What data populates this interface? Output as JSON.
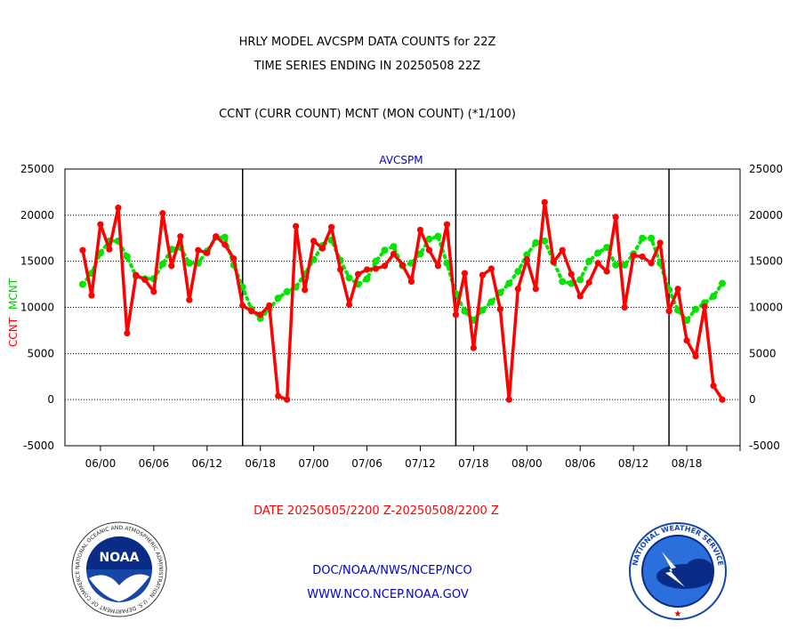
{
  "header": {
    "title_line1": "HRLY MODEL AVCSPM DATA COUNTS for 22Z",
    "title_line2": "TIME SERIES ENDING IN 20250508 22Z",
    "subtitle": "CCNT (CURR COUNT) MCNT (MON COUNT) (*1/100)"
  },
  "chart_data": {
    "type": "line",
    "title": "AVCSPM",
    "ylabel_left": [
      "CCNT",
      "MCNT"
    ],
    "ylim": [
      -5000,
      25000
    ],
    "yticks": [
      25000,
      20000,
      15000,
      10000,
      5000,
      0,
      -5000
    ],
    "x_range": [
      -2,
      74
    ],
    "x_tick_positions": [
      2,
      8,
      14,
      20,
      26,
      32,
      38,
      44,
      50,
      56,
      62,
      68,
      74
    ],
    "x_tick_labels": [
      "06/00",
      "06/06",
      "06/12",
      "06/18",
      "07/00",
      "07/06",
      "07/12",
      "07/18",
      "08/00",
      "08/06",
      "08/12",
      "08/18",
      ""
    ],
    "day_boundaries": [
      18,
      42,
      66
    ],
    "grid": true,
    "x": [
      0,
      1,
      2,
      3,
      4,
      5,
      6,
      7,
      8,
      9,
      10,
      11,
      12,
      13,
      14,
      15,
      16,
      17,
      18,
      19,
      20,
      21,
      22,
      23,
      24,
      25,
      26,
      27,
      28,
      29,
      30,
      31,
      32,
      33,
      34,
      35,
      36,
      37,
      38,
      39,
      40,
      41,
      42,
      43,
      44,
      45,
      46,
      47,
      48,
      49,
      50,
      51,
      52,
      53,
      54,
      55,
      56,
      57,
      58,
      59,
      60,
      61,
      62,
      63,
      64,
      65,
      66,
      67,
      68,
      69,
      70,
      71,
      72
    ],
    "series": [
      {
        "name": "CCNT",
        "color": "#ff0000",
        "values": [
          16200,
          11300,
          19000,
          16300,
          20800,
          7200,
          13500,
          13000,
          11700,
          20200,
          14500,
          17700,
          10800,
          16200,
          15900,
          17700,
          16800,
          15300,
          10200,
          9600,
          9200,
          10200,
          400,
          0,
          18800,
          11900,
          17200,
          16400,
          18700,
          14100,
          10300,
          13600,
          14100,
          14200,
          14500,
          15800,
          14600,
          12800,
          18400,
          16200,
          14500,
          19000,
          9200,
          13700,
          5600,
          13500,
          14200,
          9800,
          0,
          12000,
          15200,
          12000,
          21400,
          14900,
          16200,
          13600,
          11200,
          12700,
          14800,
          13900,
          19800,
          10000,
          15600,
          15500,
          14800,
          17000,
          9600,
          12000,
          6400,
          4700,
          10100,
          1500,
          0
        ]
      },
      {
        "name": "MCNT",
        "color": "#00e600",
        "values": [
          12500,
          13700,
          15900,
          17200,
          17200,
          15500,
          13400,
          13100,
          13100,
          14700,
          16300,
          16500,
          14800,
          14800,
          16100,
          17600,
          17600,
          14600,
          12200,
          9800,
          8800,
          9800,
          11000,
          11700,
          12200,
          13600,
          15200,
          16700,
          17300,
          15100,
          13200,
          12500,
          13100,
          15000,
          16200,
          16600,
          14500,
          14800,
          15800,
          17400,
          17700,
          14800,
          11500,
          9600,
          8600,
          9700,
          10600,
          11600,
          12600,
          13900,
          15700,
          17000,
          17200,
          15000,
          12800,
          12600,
          13000,
          15000,
          15900,
          16500,
          14600,
          14600,
          15800,
          17500,
          17500,
          14800,
          11900,
          9700,
          8600,
          9800,
          10500,
          11200,
          12600
        ]
      }
    ]
  },
  "footer": {
    "date_range": "DATE 20250505/2200 Z-20250508/2200 Z",
    "link1": "DOC/NOAA/NWS/NCEP/NCO",
    "link2": "WWW.NCO.NCEP.NOAA.GOV",
    "noaa_logo_text": "NOAA",
    "noaa_logo_ring_text": "NATIONAL OCEANIC AND ATMOSPHERIC ADMINISTRATION · U.S. DEPARTMENT OF COMMERCE ·",
    "nws_logo_ring_text": "NATIONAL WEATHER SERVICE"
  },
  "colors": {
    "ccnt": "#ff0000",
    "mcnt": "#00e600",
    "title_blue": "#0000cc",
    "text_red": "#ff0000"
  }
}
